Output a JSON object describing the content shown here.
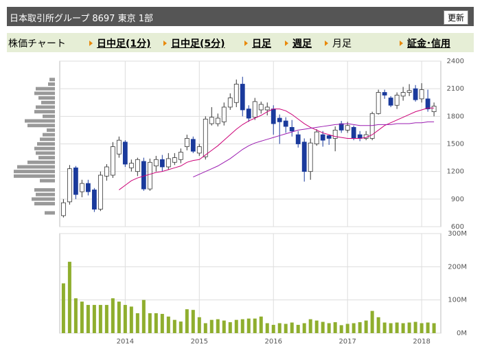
{
  "header": {
    "title": "日本取引所グループ 8697 東京 1部",
    "button": "更新"
  },
  "tabs": [
    "株価チャート",
    "日中足(1分)",
    "日中足(5分)",
    "日足",
    "週足",
    "月足",
    "証金･信用"
  ],
  "chart_data": {
    "type": "candlestick",
    "open": [
      720,
      870,
      1240,
      980,
      1070,
      1000,
      790,
      1150,
      1160,
      1390,
      1520,
      1240,
      1200,
      1310,
      1010,
      1260,
      1330,
      1250,
      1300,
      1330,
      1470,
      1550,
      1400,
      1360,
      1720,
      1720,
      1740,
      1900,
      1950,
      2150,
      1880,
      1790,
      1870,
      1870,
      1880,
      1780,
      1750,
      1680,
      1600,
      1520,
      1200,
      1500,
      1600,
      1590,
      1560,
      1720,
      1650,
      1680,
      1600,
      1560,
      1560,
      1830,
      2060,
      2000,
      1920,
      2020,
      2060,
      2100,
      1990,
      1990,
      1850
    ],
    "high": [
      900,
      1270,
      1260,
      1110,
      1110,
      1020,
      1200,
      1280,
      1520,
      1580,
      1540,
      1330,
      1350,
      1350,
      1340,
      1370,
      1380,
      1400,
      1400,
      1450,
      1600,
      1580,
      1500,
      1800,
      1900,
      1830,
      1950,
      2050,
      2200,
      2230,
      1920,
      2000,
      1960,
      1950,
      1920,
      1820,
      1790,
      1760,
      1640,
      1560,
      1560,
      1660,
      1640,
      1600,
      1690,
      1750,
      1740,
      1700,
      1640,
      1640,
      1850,
      2090,
      2090,
      2020,
      2060,
      2120,
      2150,
      2140,
      2160,
      2090,
      1950
    ],
    "low": [
      700,
      840,
      900,
      920,
      940,
      760,
      770,
      1100,
      1130,
      1350,
      1250,
      1200,
      1150,
      990,
      990,
      1200,
      1200,
      1220,
      1270,
      1290,
      1430,
      1400,
      1370,
      1330,
      1700,
      1690,
      1700,
      1870,
      1900,
      1800,
      1740,
      1760,
      1830,
      1810,
      1600,
      1500,
      1620,
      1580,
      1460,
      1090,
      1110,
      1480,
      1470,
      1490,
      1420,
      1620,
      1620,
      1540,
      1530,
      1540,
      1540,
      1820,
      1990,
      1900,
      1880,
      1970,
      2020,
      1960,
      1950,
      1850,
      1800
    ],
    "close": [
      860,
      1230,
      950,
      1070,
      980,
      790,
      1160,
      1250,
      1470,
      1540,
      1280,
      1290,
      1330,
      1010,
      1300,
      1330,
      1250,
      1340,
      1350,
      1410,
      1560,
      1420,
      1470,
      1770,
      1790,
      1780,
      1900,
      2000,
      2150,
      1870,
      1780,
      1960,
      1930,
      1900,
      1720,
      1740,
      1690,
      1640,
      1500,
      1200,
      1510,
      1630,
      1540,
      1560,
      1650,
      1650,
      1700,
      1560,
      1560,
      1600,
      1830,
      2060,
      2030,
      1920,
      2030,
      2060,
      2080,
      1980,
      2090,
      1880,
      1910
    ],
    "up_color": "#ffffff",
    "down_color": "#1a3a9c",
    "edge_color": "#333333",
    "ma": [
      {
        "color": "#cc0077",
        "values": [
          null,
          null,
          null,
          null,
          null,
          null,
          null,
          null,
          null,
          1000,
          1050,
          1100,
          1130,
          1150,
          1170,
          1190,
          1200,
          1220,
          1240,
          1260,
          1300,
          1320,
          1330,
          1380,
          1430,
          1480,
          1540,
          1600,
          1660,
          1710,
          1750,
          1780,
          1810,
          1850,
          1880,
          1880,
          1860,
          1820,
          1770,
          1720,
          1680,
          1650,
          1620,
          1600,
          1580,
          1570,
          1560,
          1560,
          1560,
          1570,
          1600,
          1650,
          1700,
          1730,
          1760,
          1790,
          1820,
          1850,
          1870,
          1890,
          1890
        ]
      },
      {
        "color": "#9a1ab0",
        "values": [
          null,
          null,
          null,
          null,
          null,
          null,
          null,
          null,
          null,
          null,
          null,
          null,
          null,
          null,
          null,
          null,
          null,
          null,
          null,
          null,
          null,
          1140,
          1170,
          1200,
          1230,
          1260,
          1300,
          1340,
          1390,
          1440,
          1480,
          1510,
          1530,
          1550,
          1570,
          1590,
          1610,
          1630,
          1650,
          1660,
          1670,
          1680,
          1690,
          1700,
          1710,
          1715,
          1720,
          1710,
          1700,
          1700,
          1700,
          1710,
          1710,
          1710,
          1720,
          1720,
          1720,
          1730,
          1730,
          1740,
          1740
        ]
      }
    ],
    "xlim": [
      -0.6,
      61.1
    ],
    "xticks": [
      {
        "value": 10,
        "label": "2014"
      },
      {
        "value": 22,
        "label": "2015"
      },
      {
        "value": 34,
        "label": "2016"
      },
      {
        "value": 46,
        "label": "2017"
      },
      {
        "value": 58,
        "label": "2018"
      }
    ],
    "ylim": [
      600,
      2400
    ],
    "yticks": [
      600,
      900,
      1200,
      1500,
      1800,
      2100,
      2400
    ],
    "grid": true,
    "price_volume": {
      "color": "#999999",
      "prices": [
        750,
        800,
        850,
        900,
        950,
        1000,
        1050,
        1100,
        1150,
        1200,
        1250,
        1300,
        1350,
        1400,
        1450,
        1500,
        1550,
        1600,
        1650,
        1700,
        1750,
        1800,
        1850,
        1900,
        1950,
        2000,
        2050,
        2100,
        2150,
        2200
      ],
      "values": [
        15,
        0,
        30,
        34,
        28,
        30,
        0,
        22,
        60,
        60,
        55,
        40,
        24,
        28,
        30,
        26,
        22,
        18,
        12,
        40,
        44,
        18,
        30,
        28,
        20,
        24,
        30,
        28,
        10,
        8
      ]
    },
    "volume": {
      "color": "#8fae2e",
      "ylim": [
        0,
        300000000
      ],
      "yticks": [
        {
          "value": 0,
          "label": "0M"
        },
        {
          "value": 100000000,
          "label": "100M"
        },
        {
          "value": 200000000,
          "label": "200M"
        },
        {
          "value": 300000000,
          "label": "300M"
        }
      ],
      "values": [
        150000000,
        215000000,
        105000000,
        95000000,
        85000000,
        85000000,
        85000000,
        85000000,
        105000000,
        95000000,
        85000000,
        80000000,
        60000000,
        100000000,
        60000000,
        60000000,
        58000000,
        50000000,
        40000000,
        35000000,
        72000000,
        70000000,
        48000000,
        30000000,
        40000000,
        42000000,
        38000000,
        33000000,
        40000000,
        42000000,
        44000000,
        44000000,
        50000000,
        30000000,
        25000000,
        30000000,
        28000000,
        32000000,
        25000000,
        30000000,
        42000000,
        38000000,
        34000000,
        30000000,
        33000000,
        24000000,
        28000000,
        30000000,
        33000000,
        38000000,
        67000000,
        48000000,
        32000000,
        30000000,
        32000000,
        30000000,
        32000000,
        34000000,
        30000000,
        32000000,
        30000000
      ]
    }
  }
}
